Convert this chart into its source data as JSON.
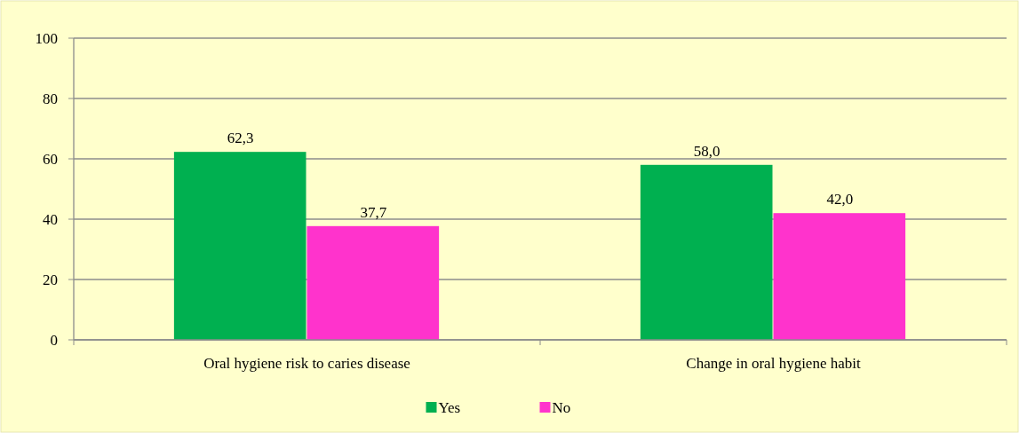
{
  "chart_data": {
    "type": "bar",
    "categories": [
      "Oral hygiene risk to caries disease",
      "Change in oral hygiene habit"
    ],
    "series": [
      {
        "name": "Yes",
        "color": "#00b050",
        "values": [
          62.3,
          58.0
        ],
        "value_labels": [
          "62,3",
          "58,0"
        ]
      },
      {
        "name": "No",
        "color": "#ff33cc",
        "values": [
          37.7,
          42.0
        ],
        "value_labels": [
          "37,7",
          "42,0"
        ]
      }
    ],
    "ylim": [
      0,
      100
    ],
    "yticks": [
      0,
      20,
      40,
      60,
      80,
      100
    ],
    "grid": "y",
    "legend": "bottom"
  }
}
